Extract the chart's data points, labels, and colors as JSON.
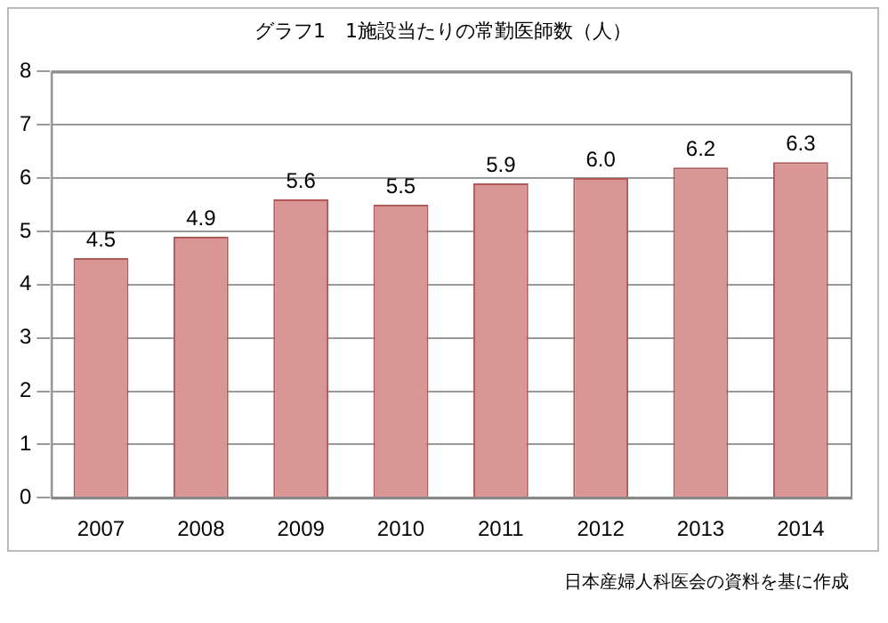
{
  "chart_data": {
    "type": "bar",
    "title": "グラフ1　1施設当たりの常勤医師数（人）",
    "categories": [
      "2007",
      "2008",
      "2009",
      "2010",
      "2011",
      "2012",
      "2013",
      "2014"
    ],
    "values": [
      4.5,
      4.9,
      5.6,
      5.5,
      5.9,
      6.0,
      6.2,
      6.3
    ],
    "value_labels": [
      "4.5",
      "4.9",
      "5.6",
      "5.5",
      "5.9",
      "6.0",
      "6.2",
      "6.3"
    ],
    "color": "#d99694",
    "ylim": [
      0,
      8
    ],
    "yticks": [
      0,
      1,
      2,
      3,
      4,
      5,
      6,
      7,
      8
    ],
    "grid": "y",
    "annotations": [
      "日本産婦人科医会の資料を基に作成"
    ]
  }
}
